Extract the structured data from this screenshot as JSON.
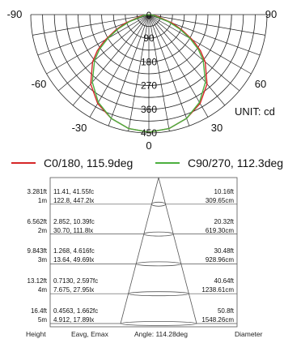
{
  "chart_data": [
    {
      "type": "polar",
      "angle_ticks": [
        "-90",
        "-60",
        "-30",
        "0",
        "30",
        "60",
        "90"
      ],
      "radial_ticks": [
        "0",
        "90",
        "180",
        "270",
        "360",
        "450"
      ],
      "radial_max": 450,
      "unit_label": "UNIT: cd",
      "series": [
        {
          "name": "C0/180, 115.9deg",
          "color": "#d62728",
          "angles": [
            0,
            10,
            20,
            30,
            40,
            50,
            55,
            58,
            60,
            65,
            70,
            80,
            90
          ],
          "values": [
            447,
            440,
            420,
            390,
            345,
            280,
            240,
            210,
            190,
            140,
            95,
            30,
            0
          ]
        },
        {
          "name": "C90/270, 112.3deg",
          "color": "#4caf3f",
          "angles": [
            0,
            10,
            20,
            30,
            40,
            50,
            55,
            60,
            65,
            70,
            80,
            90
          ],
          "values": [
            447,
            440,
            420,
            385,
            335,
            270,
            230,
            180,
            130,
            80,
            20,
            0
          ]
        }
      ]
    },
    {
      "type": "table",
      "rows": [
        {
          "height_ft": "3.281ft",
          "fc": "11.41, 41.55fc",
          "dia_ft": "10.16ft",
          "height_m": "1m",
          "lx": "122.8, 447.2lx",
          "dia_cm": "309.65cm"
        },
        {
          "height_ft": "6.562ft",
          "fc": "2.852, 10.39fc",
          "dia_ft": "20.32ft",
          "height_m": "2m",
          "lx": "30.70, 111.8lx",
          "dia_cm": "619.30cm"
        },
        {
          "height_ft": "9.843ft",
          "fc": "1.268, 4.616fc",
          "dia_ft": "30.48ft",
          "height_m": "3m",
          "lx": "13.64, 49.69lx",
          "dia_cm": "928.96cm"
        },
        {
          "height_ft": "13.12ft",
          "fc": "0.7130, 2.597fc",
          "dia_ft": "40.64ft",
          "height_m": "4m",
          "lx": "7.675, 27.95lx",
          "dia_cm": "1238.61cm"
        },
        {
          "height_ft": "16.4ft",
          "fc": "0.4563, 1.662fc",
          "dia_ft": "50.8ft",
          "height_m": "5m",
          "lx": "4.912, 17.89lx",
          "dia_cm": "1548.26cm"
        }
      ],
      "footer": {
        "height": "Height",
        "eavg": "Eavg, Emax",
        "angle": "Angle: 114.28deg",
        "diameter": "Diameter"
      }
    }
  ]
}
